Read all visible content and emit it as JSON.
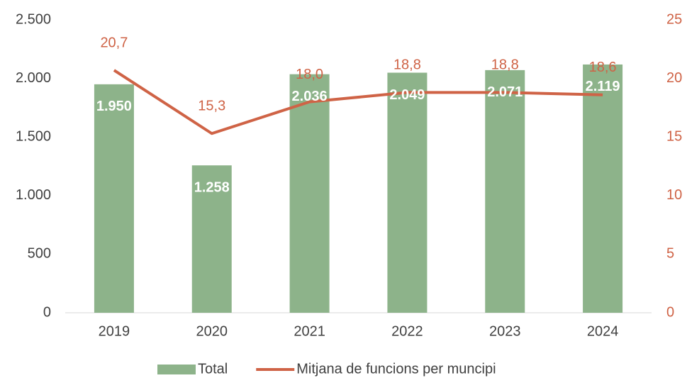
{
  "chart_data": {
    "type": "bar",
    "categories": [
      "2019",
      "2020",
      "2021",
      "2022",
      "2023",
      "2024"
    ],
    "series": [
      {
        "name": "Total",
        "type": "bar",
        "color": "#8db38a",
        "values": [
          1950,
          1258,
          2036,
          2049,
          2071,
          2119
        ],
        "value_labels": [
          "1.950",
          "1.258",
          "2.036",
          "2.049",
          "2.071",
          "2.119"
        ]
      },
      {
        "name": "Mitjana de funcions per muncipi",
        "type": "line",
        "axis": "y2",
        "color": "#cf6346",
        "values": [
          20.7,
          15.3,
          18.0,
          18.8,
          18.8,
          18.6
        ],
        "value_labels": [
          "20,7",
          "15,3",
          "18,0",
          "18,8",
          "18,8",
          "18,6"
        ]
      }
    ],
    "ylim": [
      0,
      2500
    ],
    "yticks": [
      0,
      500,
      {
        "value": 1000,
        "label": "1.000"
      },
      {
        "value": 1500,
        "label": "1.500"
      },
      {
        "value": 2000,
        "label": "2.000"
      },
      {
        "value": 2500,
        "label": "2.500"
      }
    ],
    "y2lim": [
      0,
      25
    ],
    "y2ticks": [
      0,
      5,
      10,
      15,
      20,
      25
    ],
    "grid": false,
    "legend": "bottom"
  }
}
